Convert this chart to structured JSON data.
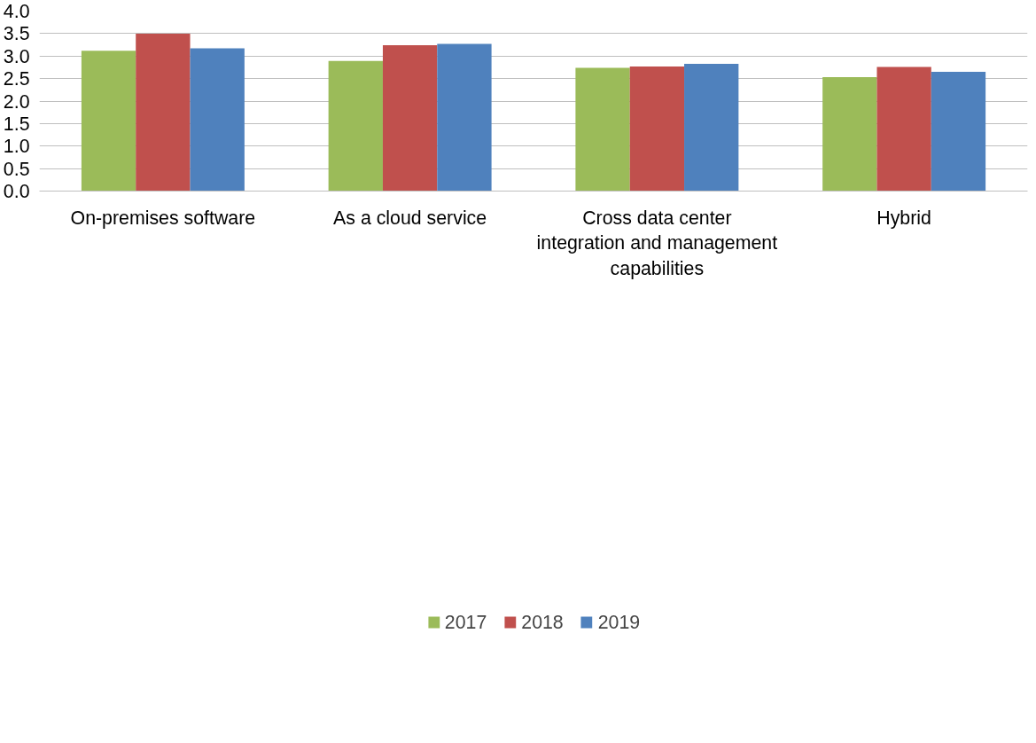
{
  "chart_data": {
    "type": "bar",
    "categories": [
      "On-premises software",
      "As a cloud service",
      "Cross data center integration and management capabilities",
      "Hybrid"
    ],
    "series": [
      {
        "name": "2017",
        "color": "#9bbb59",
        "values": [
          3.12,
          2.89,
          2.74,
          2.53
        ]
      },
      {
        "name": "2018",
        "color": "#c0504d",
        "values": [
          3.5,
          3.24,
          2.77,
          2.76
        ]
      },
      {
        "name": "2019",
        "color": "#4f81bd",
        "values": [
          3.17,
          3.27,
          2.83,
          2.65
        ]
      }
    ],
    "ylim": [
      0,
      4
    ],
    "yticks": [
      {
        "value": 0,
        "label": "0.0"
      },
      {
        "value": 0.5,
        "label": "0.5"
      },
      {
        "value": 1,
        "label": "1.0"
      },
      {
        "value": 1.5,
        "label": "1.5"
      },
      {
        "value": 2,
        "label": "2.0"
      },
      {
        "value": 2.5,
        "label": "2.5"
      },
      {
        "value": 3,
        "label": "3.0"
      },
      {
        "value": 3.5,
        "label": "3.5"
      },
      {
        "value": 4,
        "label": "4.0"
      }
    ],
    "grid": "y",
    "legend": "bottom"
  }
}
